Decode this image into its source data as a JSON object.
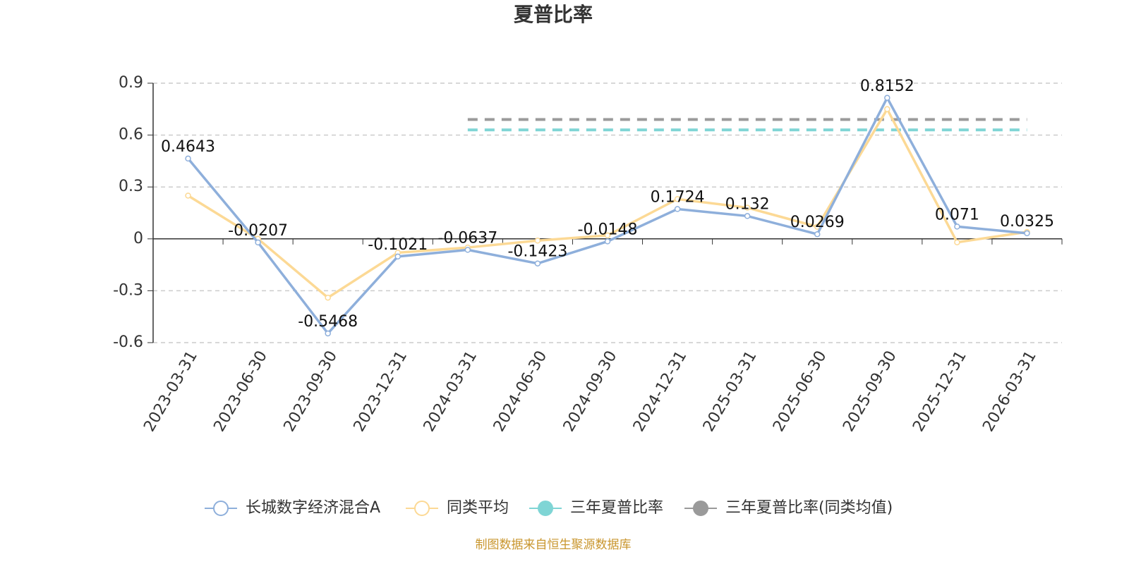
{
  "chart_data": {
    "type": "line",
    "title": "夏普比率",
    "categories": [
      "2023-03-31",
      "2023-06-30",
      "2023-09-30",
      "2023-12-31",
      "2024-03-31",
      "2024-06-30",
      "2024-09-30",
      "2024-12-31",
      "2025-03-31",
      "2025-06-30",
      "2025-09-30",
      "2025-12-31",
      "2026-03-31"
    ],
    "series": [
      {
        "name": "长城数字经济混合A",
        "color": "#8eafdb",
        "values": [
          0.4643,
          -0.0207,
          -0.5468,
          -0.1021,
          -0.0637,
          -0.1423,
          -0.0148,
          0.1724,
          0.132,
          0.0269,
          0.8152,
          0.071,
          0.0325
        ]
      },
      {
        "name": "同类平均",
        "color": "#fcd995",
        "values": [
          0.25,
          0.0,
          -0.34,
          -0.08,
          -0.05,
          -0.01,
          0.02,
          0.23,
          0.18,
          0.07,
          0.75,
          -0.02,
          0.04
        ]
      },
      {
        "name": "三年夏普比率",
        "color": "#7fd5d5",
        "values": [
          null,
          null,
          null,
          null,
          0.63,
          0.63,
          0.63,
          0.63,
          0.63,
          0.63,
          0.63,
          0.63,
          0.63
        ]
      },
      {
        "name": "三年夏普比率(同类均值)",
        "color": "#9a9a9a",
        "values": [
          null,
          null,
          null,
          null,
          0.69,
          0.69,
          0.69,
          0.69,
          0.69,
          0.69,
          0.69,
          0.69,
          0.69
        ]
      }
    ],
    "ylim": [
      -0.6,
      0.9
    ],
    "yticks": [
      -0.6,
      -0.3,
      0,
      0.3,
      0.6,
      0.9
    ],
    "grid": true,
    "footnote": "制图数据来自恒生聚源数据库"
  }
}
